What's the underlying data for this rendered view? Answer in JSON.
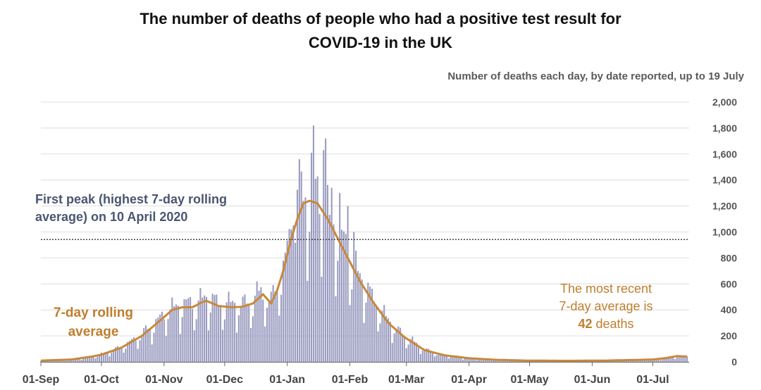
{
  "title_line1": "The number of deaths of people who had a positive test result for",
  "title_line2": "COVID-19 in the UK",
  "subtitle": "Number of deaths each day, by date reported, up to 19 July",
  "annotations": {
    "first_peak_line1": "First peak (highest 7-day rolling",
    "first_peak_line2": "average) on 10 April 2020",
    "rolling_line1": "7-day rolling",
    "rolling_line2": "average",
    "recent_line1": "The most recent",
    "recent_line2": "7-day average is",
    "recent_value": "42",
    "recent_suffix": " deaths"
  },
  "colors": {
    "bars": "#9a9bc0",
    "rolling": "#c8883a",
    "peak_line": "#444444",
    "grid": "#dddddd"
  },
  "chart_data": {
    "type": "bar",
    "title": "The number of deaths of people who had a positive test result for COVID-19 in the UK",
    "subtitle": "Number of deaths each day, by date reported, up to 19 July",
    "x_start": "2020-09-01",
    "x_end": "2021-07-19",
    "xtick_labels": [
      "01-Sep",
      "01-Oct",
      "01-Nov",
      "01-Dec",
      "01-Jan",
      "01-Feb",
      "01-Mar",
      "01-Apr",
      "01-May",
      "01-Jun",
      "01-Jul"
    ],
    "xtick_days": [
      0,
      30,
      61,
      91,
      122,
      153,
      181,
      212,
      242,
      273,
      303
    ],
    "yticks": [
      0,
      200,
      400,
      600,
      800,
      1000,
      1200,
      1400,
      1600,
      1800,
      2000
    ],
    "ytick_labels": [
      "0",
      "200",
      "400",
      "600",
      "800",
      "1,000",
      "1,200",
      "1,400",
      "1,600",
      "1,800",
      "2,000"
    ],
    "ylim": [
      0,
      2000
    ],
    "first_peak_value": 942,
    "recent_7day_average": 42,
    "rolling_average_anchors": [
      [
        0,
        10
      ],
      [
        15,
        18
      ],
      [
        25,
        40
      ],
      [
        30,
        55
      ],
      [
        40,
        110
      ],
      [
        50,
        200
      ],
      [
        60,
        330
      ],
      [
        65,
        400
      ],
      [
        70,
        420
      ],
      [
        75,
        420
      ],
      [
        80,
        460
      ],
      [
        82,
        470
      ],
      [
        85,
        450
      ],
      [
        88,
        430
      ],
      [
        95,
        420
      ],
      [
        100,
        425
      ],
      [
        105,
        450
      ],
      [
        110,
        520
      ],
      [
        114,
        450
      ],
      [
        117,
        550
      ],
      [
        120,
        700
      ],
      [
        124,
        950
      ],
      [
        127,
        1100
      ],
      [
        130,
        1220
      ],
      [
        133,
        1240
      ],
      [
        137,
        1220
      ],
      [
        142,
        1100
      ],
      [
        147,
        950
      ],
      [
        152,
        800
      ],
      [
        158,
        620
      ],
      [
        165,
        450
      ],
      [
        172,
        300
      ],
      [
        180,
        190
      ],
      [
        190,
        90
      ],
      [
        200,
        50
      ],
      [
        212,
        28
      ],
      [
        225,
        16
      ],
      [
        240,
        10
      ],
      [
        260,
        8
      ],
      [
        280,
        10
      ],
      [
        295,
        15
      ],
      [
        303,
        18
      ],
      [
        310,
        30
      ],
      [
        315,
        45
      ],
      [
        318,
        42
      ]
    ],
    "weekly_pattern": [
      0.82,
      1.08,
      1.2,
      1.15,
      1.1,
      1.0,
      0.55
    ],
    "spikes": [
      [
        124,
        1020
      ],
      [
        125,
        1050
      ],
      [
        127,
        1325
      ],
      [
        128,
        1560
      ],
      [
        130,
        1240
      ],
      [
        134,
        1610
      ],
      [
        135,
        1820
      ],
      [
        140,
        1630
      ],
      [
        141,
        1720
      ],
      [
        144,
        1340
      ],
      [
        148,
        1300
      ],
      [
        152,
        1200
      ],
      [
        155,
        1000
      ]
    ]
  }
}
